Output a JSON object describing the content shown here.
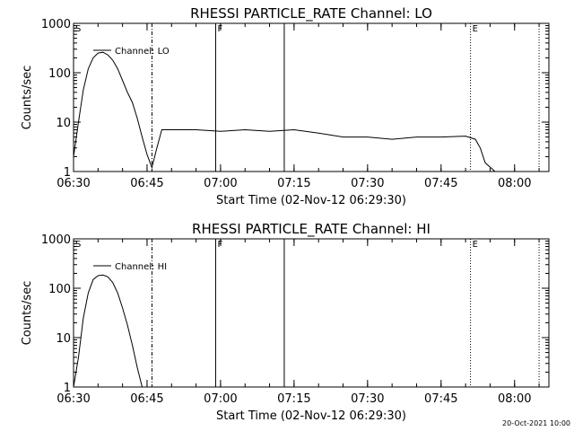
{
  "chart_data": [
    {
      "type": "line",
      "title": "RHESSI PARTICLE_RATE Channel: LO",
      "xlabel": "Start Time (02-Nov-12 06:29:30)",
      "ylabel": "Counts/sec",
      "yscale": "log",
      "ylim": [
        1,
        1000
      ],
      "xlim": [
        "06:30",
        "08:07"
      ],
      "x_ticks": [
        "06:30",
        "06:45",
        "07:00",
        "07:15",
        "07:30",
        "07:45",
        "08:00"
      ],
      "y_ticks": [
        "1",
        "10",
        "100",
        "1000"
      ],
      "legend": "Channel: LO",
      "markers": [
        {
          "label": "S",
          "time": "06:30",
          "style": "dotted"
        },
        {
          "label": "",
          "time": "06:46",
          "style": "dash-dot"
        },
        {
          "label": "F",
          "time": "06:59",
          "style": "solid"
        },
        {
          "label": "",
          "time": "07:13",
          "style": "solid"
        },
        {
          "label": "E",
          "time": "07:51",
          "style": "dotted"
        },
        {
          "label": "",
          "time": "08:05",
          "style": "dotted"
        }
      ],
      "series": [
        {
          "name": "Channel: LO",
          "x": [
            "06:30",
            "06:31",
            "06:32",
            "06:33",
            "06:34",
            "06:35",
            "06:36",
            "06:37",
            "06:38",
            "06:39",
            "06:40",
            "06:41",
            "06:42",
            "06:43",
            "06:44",
            "06:45",
            "06:46",
            "06:47",
            "06:48",
            "06:50",
            "06:55",
            "07:00",
            "07:05",
            "07:10",
            "07:15",
            "07:20",
            "07:25",
            "07:30",
            "07:35",
            "07:40",
            "07:45",
            "07:50",
            "07:52",
            "07:53",
            "07:54",
            "07:56",
            "07:58",
            "08:00",
            "08:02",
            "08:04"
          ],
          "values": [
            2,
            10,
            45,
            120,
            200,
            250,
            260,
            230,
            180,
            120,
            70,
            40,
            25,
            12,
            5,
            2.2,
            1.2,
            3,
            7,
            7,
            7,
            6.5,
            7,
            6.5,
            7,
            6,
            5,
            5,
            4.5,
            5,
            5,
            5.2,
            4.5,
            3,
            1.5,
            1,
            1,
            1,
            1,
            1
          ]
        }
      ]
    },
    {
      "type": "line",
      "title": "RHESSI PARTICLE_RATE Channel: HI",
      "xlabel": "Start Time (02-Nov-12 06:29:30)",
      "ylabel": "Counts/sec",
      "yscale": "log",
      "ylim": [
        1,
        1000
      ],
      "xlim": [
        "06:30",
        "08:07"
      ],
      "x_ticks": [
        "06:30",
        "06:45",
        "07:00",
        "07:15",
        "07:30",
        "07:45",
        "08:00"
      ],
      "y_ticks": [
        "1",
        "10",
        "100",
        "1000"
      ],
      "legend": "Channel: HI",
      "markers": [
        {
          "label": "S",
          "time": "06:30",
          "style": "dotted"
        },
        {
          "label": "",
          "time": "06:46",
          "style": "dash-dot"
        },
        {
          "label": "F",
          "time": "06:59",
          "style": "solid"
        },
        {
          "label": "",
          "time": "07:13",
          "style": "solid"
        },
        {
          "label": "E",
          "time": "07:51",
          "style": "dotted"
        },
        {
          "label": "",
          "time": "08:05",
          "style": "dotted"
        }
      ],
      "series": [
        {
          "name": "Channel: HI",
          "x": [
            "06:30",
            "06:31",
            "06:32",
            "06:33",
            "06:34",
            "06:35",
            "06:36",
            "06:37",
            "06:38",
            "06:39",
            "06:40",
            "06:41",
            "06:42",
            "06:43",
            "06:44"
          ],
          "values": [
            1,
            4,
            25,
            80,
            150,
            180,
            185,
            170,
            130,
            80,
            40,
            18,
            7,
            2.5,
            1
          ]
        }
      ]
    }
  ],
  "footer": {
    "timestamp": "20-Oct-2021 10:00"
  }
}
